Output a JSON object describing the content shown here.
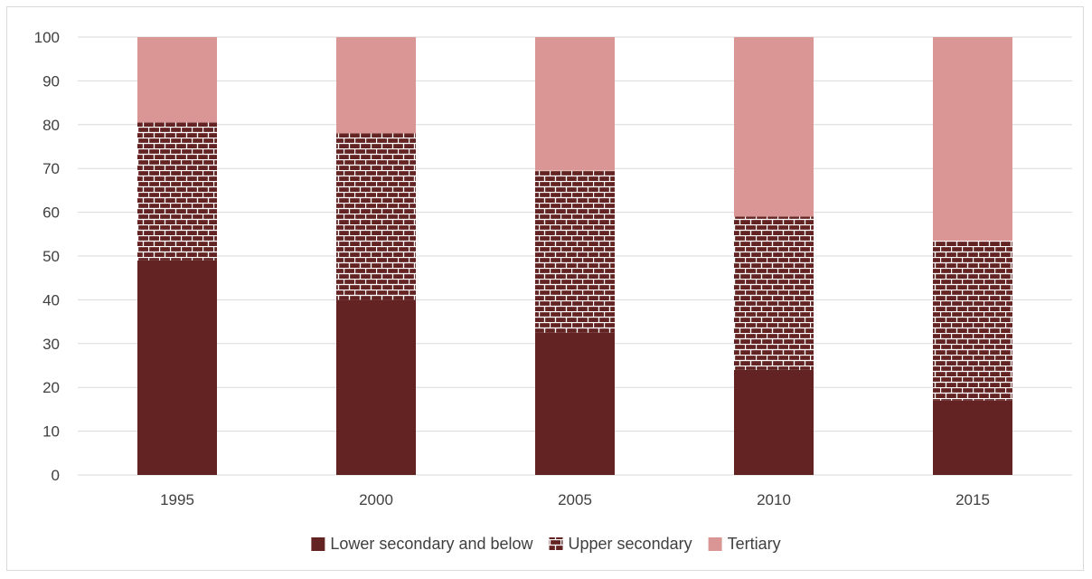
{
  "chart_data": {
    "type": "bar",
    "stacked": true,
    "categories": [
      "1995",
      "2000",
      "2005",
      "2010",
      "2015"
    ],
    "series": [
      {
        "name": "Lower secondary and below",
        "values": [
          49,
          40,
          32.5,
          24,
          17
        ],
        "color": "#622322",
        "pattern": "solid"
      },
      {
        "name": "Upper secondary",
        "values": [
          31.5,
          38,
          37,
          35,
          36.5
        ],
        "color": "#622322",
        "pattern": "brick"
      },
      {
        "name": "Tertiary",
        "values": [
          19.5,
          22,
          30.5,
          41,
          46.5
        ],
        "color": "#d99694",
        "pattern": "solid"
      }
    ],
    "yticks": [
      "0",
      "10",
      "20",
      "30",
      "40",
      "50",
      "60",
      "70",
      "80",
      "90",
      "100"
    ],
    "ylim": [
      0,
      100
    ],
    "grid": true,
    "legend_position": "bottom",
    "colors": {
      "gridline": "#d9d9d9",
      "text": "#404040",
      "brick_mortar": "#ffffff"
    }
  }
}
